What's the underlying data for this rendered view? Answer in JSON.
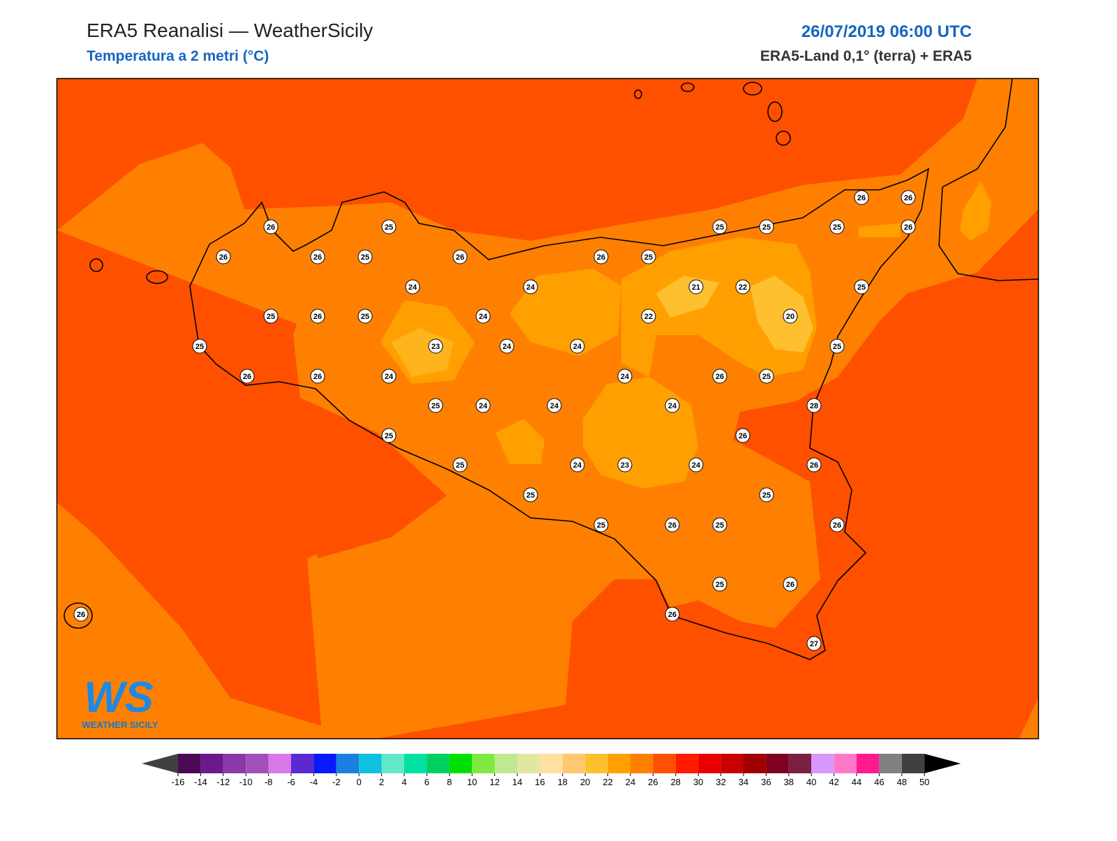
{
  "header": {
    "title": "ERA5 Reanalisi — WeatherSicily",
    "subtitle": "Temperatura a 2 metri (°C)",
    "datetime": "26/07/2019 06:00 UTC",
    "source": "ERA5-Land 0,1° (terra) + ERA5"
  },
  "logo": {
    "mark": "WS",
    "text": "WEATHER SICILY"
  },
  "stations": [
    26,
    25,
    26,
    26,
    25,
    26,
    24,
    24,
    25,
    26,
    25,
    24,
    25,
    23,
    24,
    24,
    26,
    26,
    24,
    25,
    24,
    24,
    25,
    25,
    25,
    24,
    23,
    24,
    25,
    26,
    25,
    25,
    26,
    26,
    25,
    26,
    26,
    27,
    26,
    26,
    25,
    25,
    25,
    25,
    26,
    26,
    26,
    21,
    22,
    20,
    22,
    25,
    25,
    25,
    26,
    24,
    24,
    28,
    26
  ],
  "colorbar": {
    "ticks": [
      -16,
      -14,
      -12,
      -10,
      -8,
      -6,
      -4,
      -2,
      0,
      2,
      4,
      6,
      8,
      10,
      12,
      14,
      16,
      18,
      20,
      22,
      24,
      26,
      28,
      30,
      32,
      34,
      36,
      38,
      40,
      42,
      44,
      46,
      48,
      50
    ],
    "colors": [
      "#4a0a55",
      "#6a1a8a",
      "#8a3aa8",
      "#a050b8",
      "#d878e8",
      "#5a2ad0",
      "#0a1aff",
      "#1a80e0",
      "#10c0e0",
      "#60e8c8",
      "#00e0a0",
      "#00d060",
      "#00e000",
      "#80e840",
      "#c0e890",
      "#e0e8a0",
      "#ffe0a0",
      "#ffc870",
      "#ffc030",
      "#ffa000",
      "#ff8000",
      "#ff5000",
      "#ff1a00",
      "#e80000",
      "#c80000",
      "#a00000",
      "#800020",
      "#7a2040",
      "#d898ff",
      "#ff78c8",
      "#ff1a90",
      "#808080",
      "#404040"
    ],
    "under_color": "#404040",
    "over_color": "#000000"
  }
}
